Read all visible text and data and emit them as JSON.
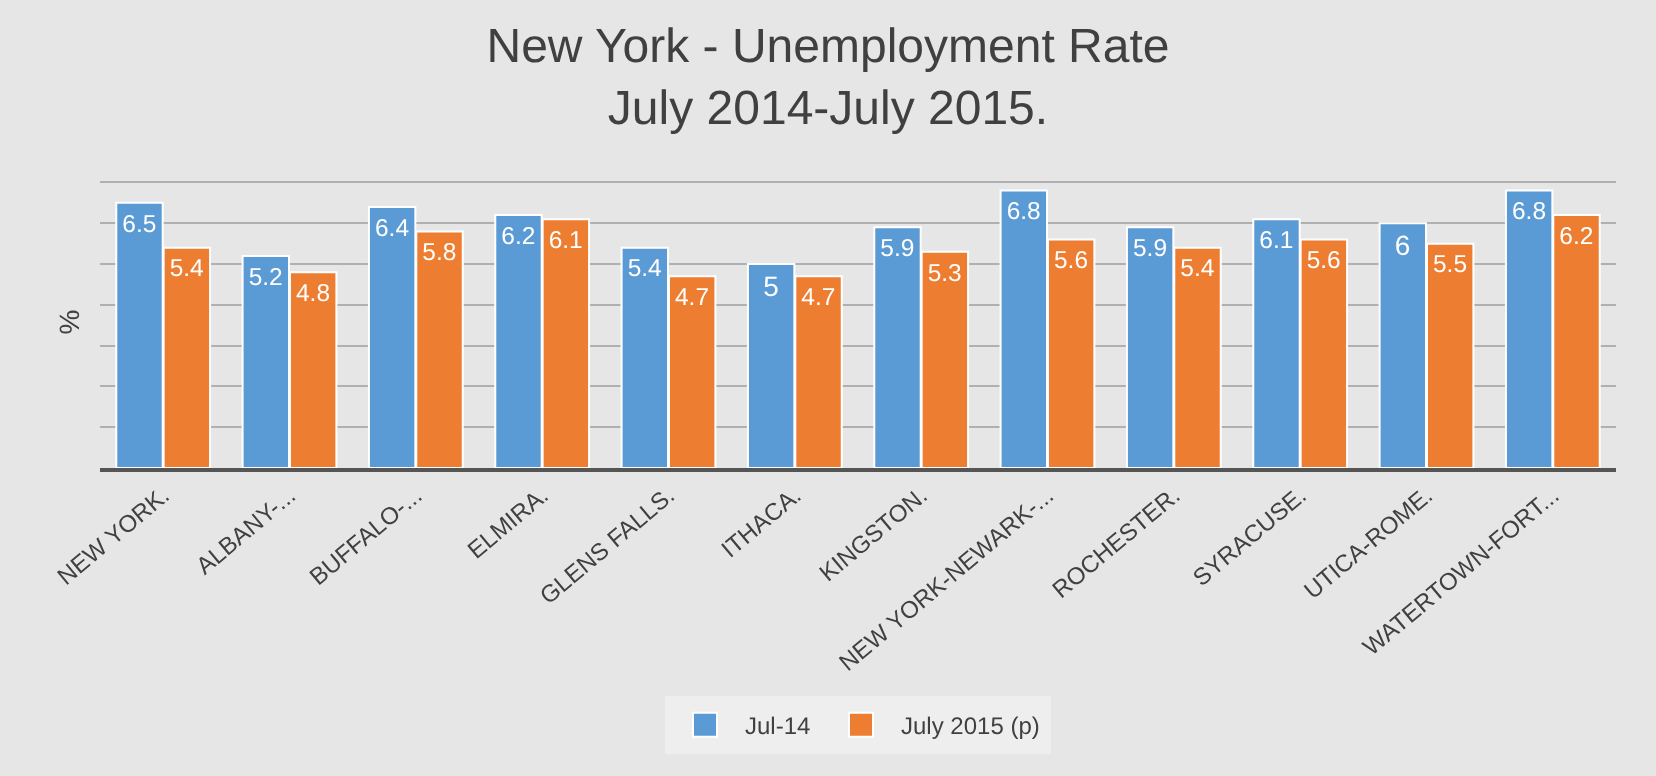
{
  "chart_data": {
    "type": "bar",
    "title": "New York - Unemployment Rate\nJuly 2014-July 2015.",
    "ylabel": "%",
    "categories": [
      "NEW YORK.",
      "ALBANY-...",
      "BUFFALO-...",
      "ELMIRA.",
      "GLENS FALLS.",
      "ITHACA.",
      "KINGSTON.",
      "NEW YORK-NEWARK-...",
      "ROCHESTER.",
      "SYRACUSE.",
      "UTICA-ROME.",
      "WATERTOWN-FORT..."
    ],
    "series": [
      {
        "name": "Jul-14",
        "color": "#5b9bd5",
        "values": [
          6.5,
          5.2,
          6.4,
          6.2,
          5.4,
          5,
          5.9,
          6.8,
          5.9,
          6.1,
          6,
          6.8
        ]
      },
      {
        "name": "July 2015 (p)",
        "color": "#ed7d31",
        "values": [
          5.4,
          4.8,
          5.8,
          6.1,
          4.7,
          4.7,
          5.3,
          5.6,
          5.4,
          5.6,
          5.5,
          6.2
        ]
      }
    ],
    "grid": "y",
    "legend": "bottom",
    "tick_labels": "x",
    "data_labels": true
  }
}
